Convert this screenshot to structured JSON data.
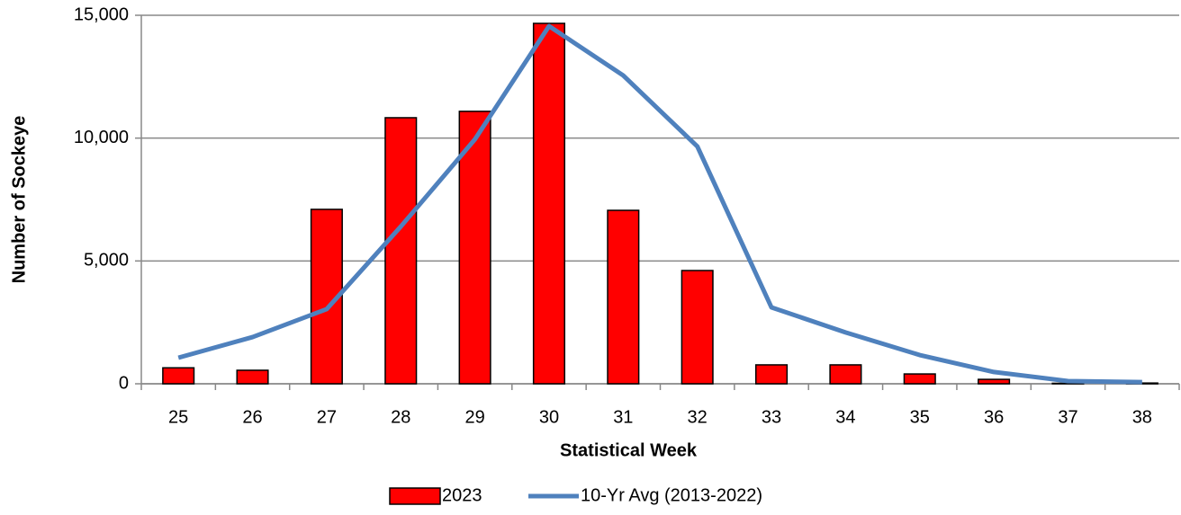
{
  "chart_data": {
    "type": "bar",
    "x_label": "Statistical Week",
    "y_label": "Number of Sockeye",
    "categories": [
      "25",
      "26",
      "27",
      "28",
      "29",
      "30",
      "31",
      "32",
      "33",
      "34",
      "35",
      "36",
      "37",
      "38"
    ],
    "series": [
      {
        "name": "2023",
        "type": "bar",
        "color": "#ff0000",
        "values": [
          650,
          550,
          7100,
          10830,
          11090,
          14670,
          7060,
          4610,
          770,
          770,
          400,
          180,
          20,
          30
        ]
      },
      {
        "name": "10-Yr Avg (2013-2022)",
        "type": "line",
        "color": "#4f81bd",
        "values": [
          1060,
          1900,
          3040,
          6400,
          9950,
          14560,
          12550,
          9660,
          3110,
          2090,
          1170,
          480,
          110,
          70
        ]
      }
    ],
    "ylim": [
      0,
      15000
    ],
    "yticks": [
      0,
      {
        "value": 5000,
        "label": "5,000"
      },
      {
        "value": 10000,
        "label": "10,000"
      },
      {
        "value": 15000,
        "label": "15,000"
      }
    ],
    "grid": true,
    "legend": "bottom"
  }
}
